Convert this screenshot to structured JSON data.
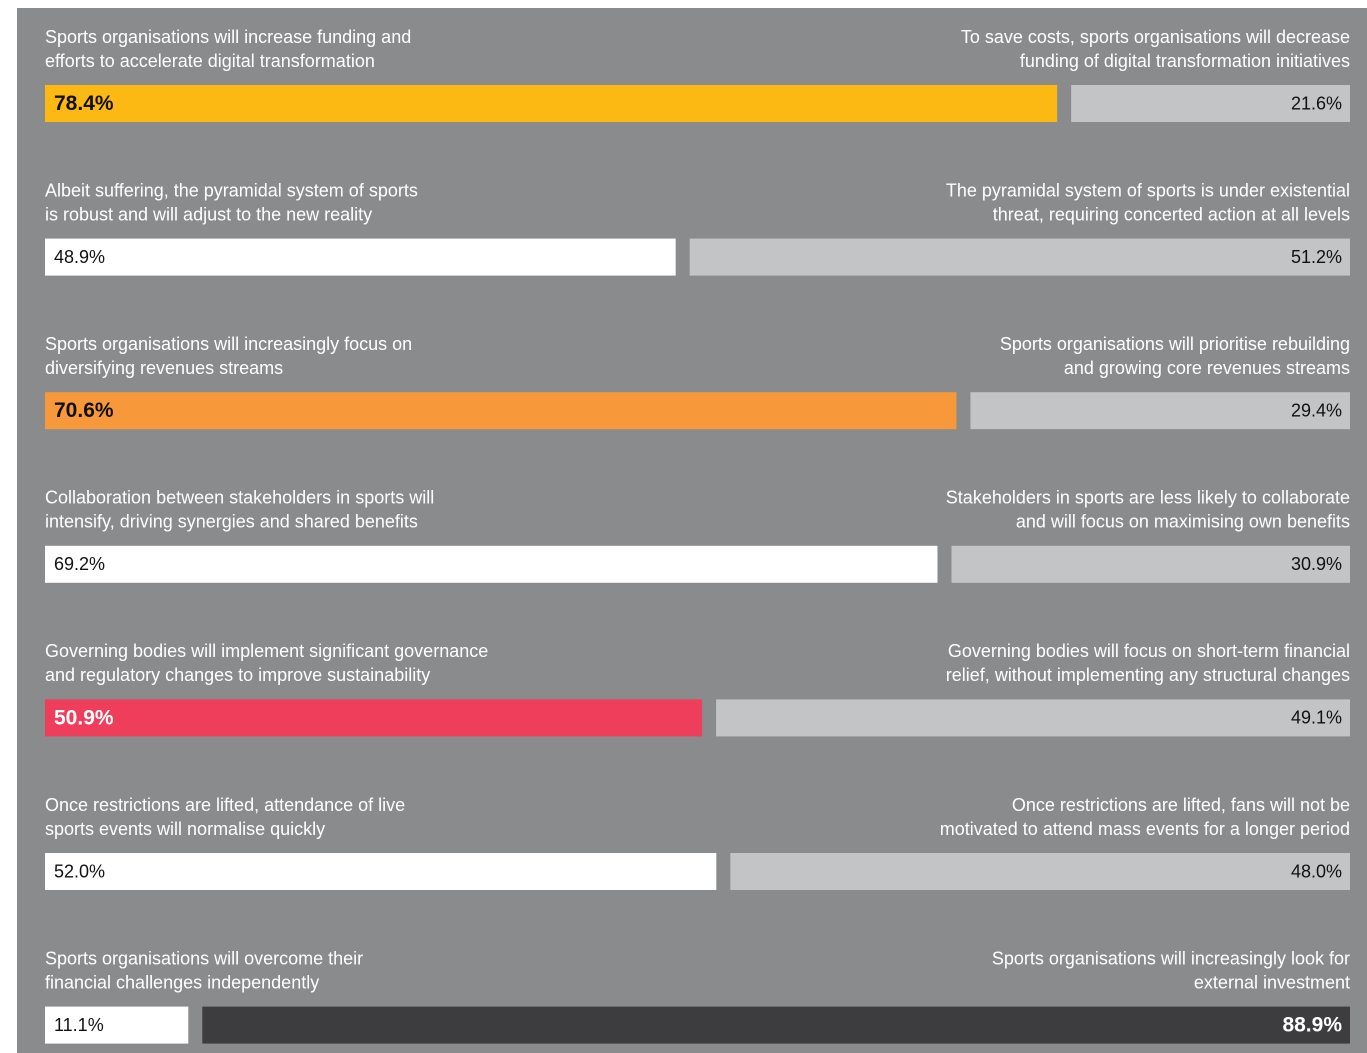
{
  "chart_data": {
    "type": "split-bar",
    "rows": [
      {
        "left_label": [
          "Sports organisations will increase funding and",
          "efforts to accelerate digital transformation"
        ],
        "right_label": [
          "To save costs, sports organisations will decrease",
          "funding of digital transformation initiatives"
        ],
        "left_value": 78.4,
        "right_value": 21.6,
        "left_value_label": "78.4%",
        "right_value_label": "21.6%",
        "left_color": "#fdb913",
        "right_color": "#c3c4c6",
        "emphasis": "left"
      },
      {
        "left_label": [
          "Albeit suffering, the pyramidal system of sports",
          "is robust and will adjust to the new reality"
        ],
        "right_label": [
          "The pyramidal system of sports is under existential",
          "threat, requiring concerted action at all levels"
        ],
        "left_value": 48.9,
        "right_value": 51.2,
        "left_value_label": "48.9%",
        "right_value_label": "51.2%",
        "left_color": "#ffffff",
        "right_color": "#c3c4c6",
        "emphasis": "none"
      },
      {
        "left_label": [
          "Sports organisations will increasingly focus on",
          "diversifying revenues streams"
        ],
        "right_label": [
          "Sports organisations will prioritise rebuilding",
          "and growing core revenues streams"
        ],
        "left_value": 70.6,
        "right_value": 29.4,
        "left_value_label": "70.6%",
        "right_value_label": "29.4%",
        "left_color": "#f7993a",
        "right_color": "#c3c4c6",
        "emphasis": "left"
      },
      {
        "left_label": [
          "Collaboration between stakeholders in sports will",
          "intensify, driving synergies and shared benefits"
        ],
        "right_label": [
          "Stakeholders in sports are less likely to collaborate",
          "and will focus on maximising own benefits"
        ],
        "left_value": 69.2,
        "right_value": 30.9,
        "left_value_label": "69.2%",
        "right_value_label": "30.9%",
        "left_color": "#ffffff",
        "right_color": "#c3c4c6",
        "emphasis": "none"
      },
      {
        "left_label": [
          "Governing bodies will implement significant governance",
          "and regulatory changes to improve sustainability"
        ],
        "right_label": [
          "Governing bodies will focus on short-term financial",
          "relief, without implementing any structural changes"
        ],
        "left_value": 50.9,
        "right_value": 49.1,
        "left_value_label": "50.9%",
        "right_value_label": "49.1%",
        "left_color": "#ef3e5c",
        "right_color": "#c3c4c6",
        "emphasis": "left"
      },
      {
        "left_label": [
          "Once restrictions are lifted, attendance of live",
          "sports events will normalise quickly"
        ],
        "right_label": [
          "Once restrictions are lifted, fans will not be",
          "motivated to attend mass events for a longer period"
        ],
        "left_value": 52.0,
        "right_value": 48.0,
        "left_value_label": "52.0%",
        "right_value_label": "48.0%",
        "left_color": "#ffffff",
        "right_color": "#c3c4c6",
        "emphasis": "none"
      },
      {
        "left_label": [
          "Sports organisations will overcome their",
          "financial challenges independently"
        ],
        "right_label": [
          "Sports organisations will increasingly look for",
          "external investment"
        ],
        "left_value": 11.1,
        "right_value": 88.9,
        "left_value_label": "11.1%",
        "right_value_label": "88.9%",
        "left_color": "#ffffff",
        "right_color": "#3d3d3f",
        "emphasis": "right"
      }
    ]
  }
}
